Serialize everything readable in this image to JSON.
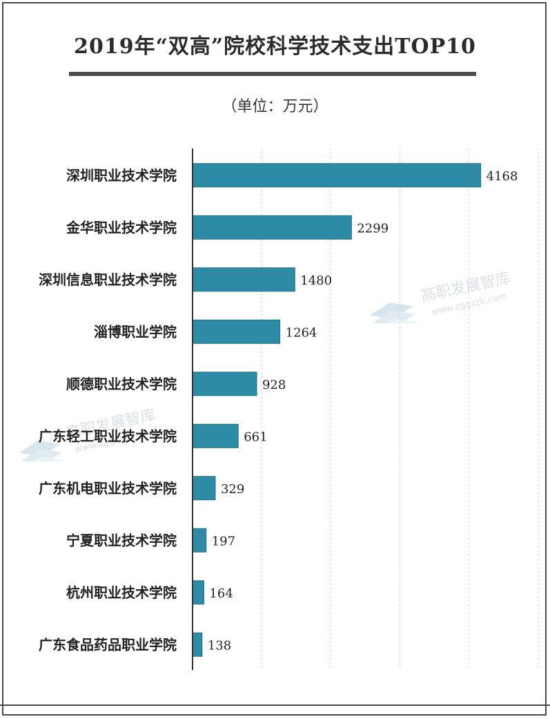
{
  "title": "2019年“双高”院校科学技术支出TOP10",
  "unit": "（单位：万元）",
  "watermark": {
    "name": "高职发展智库",
    "url": "www.zggzzk.com"
  },
  "colors": {
    "bar": "#2e8ba6",
    "bar_edge": "#1f6f86",
    "grid": "#c9c9c9",
    "axis": "#333333"
  },
  "chart_data": {
    "type": "bar",
    "orientation": "horizontal",
    "categories": [
      "深圳职业技术学院",
      "金华职业技术学院",
      "深圳信息职业技术学院",
      "淄博职业学院",
      "顺德职业技术学院",
      "广东轻工职业技术学院",
      "广东机电职业技术学院",
      "宁夏职业技术学院",
      "杭州职业技术学院",
      "广东食品药品职业学院"
    ],
    "values": [
      4168,
      2299,
      1480,
      1264,
      928,
      661,
      329,
      197,
      164,
      138
    ],
    "xlim": [
      0,
      5000
    ],
    "grid": true,
    "title": "2019年“双高”院校科学技术支出TOP10"
  }
}
